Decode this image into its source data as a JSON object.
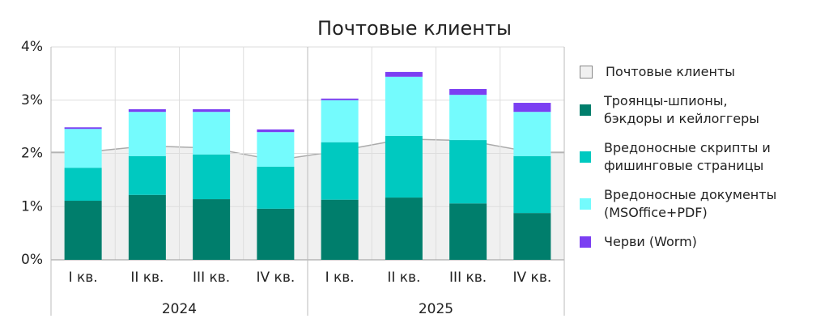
{
  "chart_data": {
    "type": "stacked_bar",
    "title": "Почтовые клиенты",
    "categories": [
      "I кв.",
      "II кв.",
      "III кв.",
      "IV кв.",
      "I кв.",
      "II кв.",
      "III кв.",
      "IV кв."
    ],
    "groups": [
      "2024",
      "2025"
    ],
    "area": {
      "name": "Почтовые клиенты",
      "color": "#f0f0f0",
      "values": [
        2.02,
        2.14,
        2.1,
        1.87,
        2.05,
        2.27,
        2.24,
        2.02
      ]
    },
    "series": [
      {
        "name": "Троянцы-шпионы,\nбэкдоры и кейлоггеры",
        "color": "#007e6c",
        "values": [
          1.11,
          1.22,
          1.14,
          0.96,
          1.13,
          1.17,
          1.06,
          0.88
        ]
      },
      {
        "name": "Вредоносные скрипты и\nфишинговые страницы",
        "color": "#00c9c0",
        "values": [
          0.62,
          0.73,
          0.84,
          0.79,
          1.08,
          1.16,
          1.19,
          1.07
        ]
      },
      {
        "name": "Вредоносные документы\n(MSOffice+PDF)",
        "color": "#74fbfd",
        "values": [
          0.73,
          0.83,
          0.8,
          0.65,
          0.79,
          1.11,
          0.85,
          0.83
        ]
      },
      {
        "name": "Черви (Worm)",
        "color": "#7b3ff2",
        "values": [
          0.03,
          0.05,
          0.05,
          0.05,
          0.03,
          0.09,
          0.11,
          0.17
        ]
      }
    ],
    "ylim": [
      0,
      4
    ],
    "yticks": [
      {
        "value": 0,
        "label": "0%"
      },
      {
        "value": 1,
        "label": "1%"
      },
      {
        "value": 2,
        "label": "2%"
      },
      {
        "value": 3,
        "label": "3%"
      },
      {
        "value": 4,
        "label": "4%"
      }
    ],
    "grid": true
  }
}
